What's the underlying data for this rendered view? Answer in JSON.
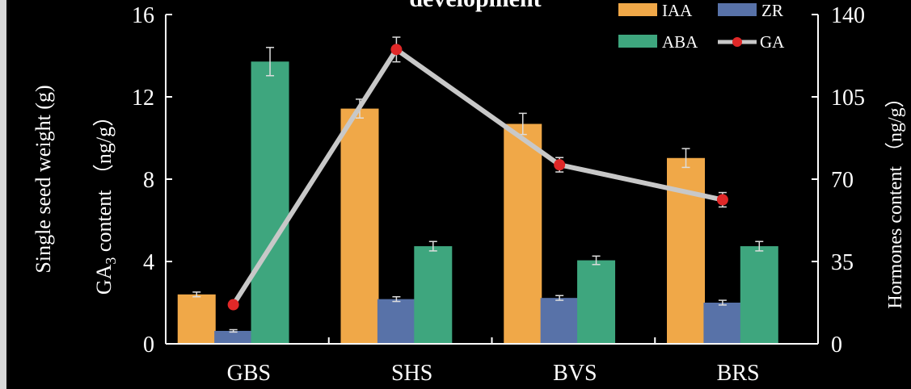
{
  "chart_data": {
    "type": "bar",
    "title": "development",
    "categories": [
      "GBS",
      "SHS",
      "BVS",
      "BRS"
    ],
    "series": [
      {
        "name": "IAA",
        "axis": "right",
        "color": "#F0A848",
        "values": [
          21,
          100,
          93.5,
          79
        ],
        "errors": [
          1,
          4,
          4.5,
          4
        ]
      },
      {
        "name": "ZR",
        "axis": "right",
        "color": "#5872A8",
        "values": [
          5.5,
          19,
          19.5,
          17.5
        ],
        "errors": [
          0.5,
          1,
          1,
          1
        ]
      },
      {
        "name": "ABA",
        "axis": "right",
        "color": "#3EA67E",
        "values": [
          120,
          41.5,
          35.5,
          41.5
        ],
        "errors": [
          6,
          2,
          1.8,
          2
        ]
      }
    ],
    "line_series": {
      "name": "GA",
      "axis": "left",
      "color": "#E02828",
      "line_color": "#C8C8C8",
      "values": [
        1.9,
        14.3,
        8.7,
        7.0
      ],
      "errors": [
        0,
        0.6,
        0.35,
        0.35
      ]
    },
    "left_axis": {
      "label": "GA3 content （ng/g）",
      "ticks": [
        "0",
        "4",
        "8",
        "12",
        "16"
      ],
      "ylim": [
        0,
        16
      ]
    },
    "right_axis": {
      "label": "Hormones content （ng/g）",
      "ticks": [
        "0",
        "35",
        "70",
        "105",
        "140"
      ],
      "ylim": [
        0,
        140
      ]
    },
    "far_left_label": "Single seed weight (g)",
    "legend_position": "top-right"
  }
}
